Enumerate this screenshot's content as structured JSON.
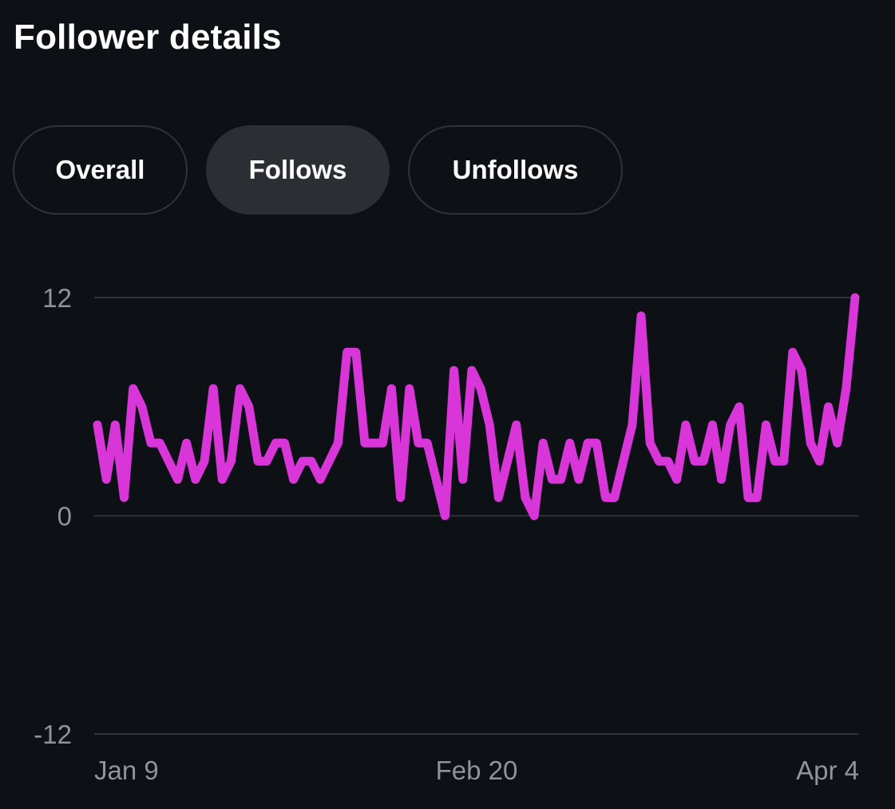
{
  "header": {
    "title": "Follower details"
  },
  "tabs": [
    {
      "label": "Overall",
      "active": false
    },
    {
      "label": "Follows",
      "active": true
    },
    {
      "label": "Unfollows",
      "active": false
    }
  ],
  "colors": {
    "background": "#0d1014",
    "line": "#d936d9",
    "grid": "#2f3336",
    "tick_text": "#8e949a",
    "tab_active": "#2b2f34"
  },
  "chart_data": {
    "type": "line",
    "title": "",
    "xlabel": "",
    "ylabel": "",
    "ylim": [
      -12,
      12
    ],
    "yticks": [
      12,
      0,
      -12
    ],
    "x_tick_labels": [
      "Jan 9",
      "Feb 20",
      "Apr 4"
    ],
    "x_start": "Jan 8",
    "x_end": "Apr 5",
    "grid": true,
    "series": [
      {
        "values": [
          5,
          2,
          5,
          1,
          7,
          6,
          4,
          4,
          3,
          2,
          4,
          2,
          3,
          7,
          2,
          3,
          7,
          6,
          3,
          3,
          4,
          4,
          2,
          3,
          3,
          2,
          3,
          4,
          9,
          9,
          4,
          4,
          4,
          7,
          1,
          7,
          4,
          4,
          2,
          0,
          8,
          2,
          8,
          7,
          5,
          1,
          3,
          5,
          1,
          0,
          4,
          2,
          2,
          4,
          2,
          4,
          4,
          1,
          1,
          3,
          5,
          11,
          4,
          3,
          3,
          2,
          5,
          3,
          3,
          5,
          2,
          5,
          6,
          1,
          1,
          5,
          3,
          3,
          9,
          8,
          4,
          3,
          6,
          4,
          7,
          12
        ]
      }
    ]
  }
}
